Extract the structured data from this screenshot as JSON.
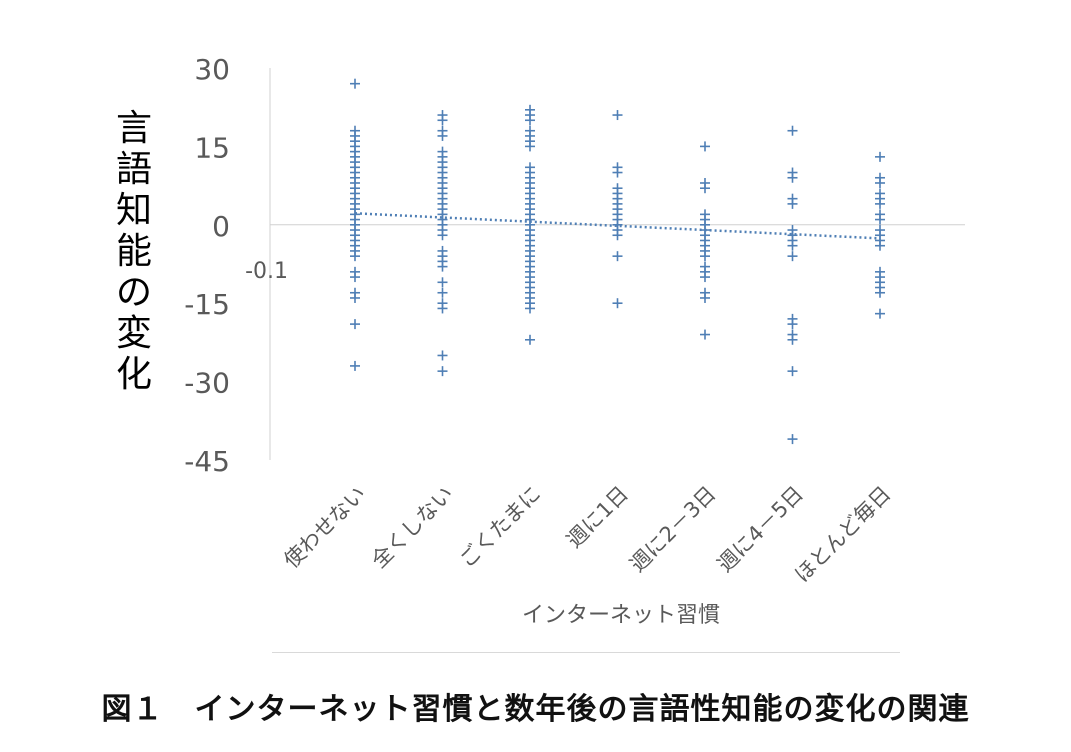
{
  "chart_data": {
    "type": "scatter",
    "title": "",
    "xlabel": "インターネット習慣",
    "ylabel": "言語知能の変化",
    "categories": [
      "使わせない",
      "全くしない",
      "ごくたまに",
      "週に1日",
      "週に2－3日",
      "週に4－5日",
      "ほとんど毎日"
    ],
    "ylim": [
      -45,
      30
    ],
    "yticks": [
      30,
      15,
      0,
      -15,
      -30,
      -45
    ],
    "grid": false,
    "legend": "none",
    "marker_color": "#4f7fb5",
    "trendline": {
      "style": "dotted",
      "start": 2.2,
      "end": -2.6,
      "label": "-0.1"
    },
    "series": [
      {
        "category": "使わせない",
        "y": [
          27,
          18,
          17,
          16,
          15,
          14,
          13,
          12,
          11,
          10,
          9,
          8,
          7,
          6,
          5,
          4,
          3,
          2,
          1,
          0,
          -1,
          -2,
          -3,
          -4,
          -5,
          -6,
          -9,
          -10,
          -13,
          -14,
          -19,
          -27
        ]
      },
      {
        "category": "全くしない",
        "y": [
          21,
          20,
          18,
          17,
          14,
          13,
          12,
          11,
          10,
          9,
          8,
          7,
          6,
          5,
          4,
          3,
          2,
          1,
          0,
          -1,
          -2,
          -5,
          -6,
          -7,
          -8,
          -11,
          -13,
          -15,
          -16,
          -25,
          -28
        ]
      },
      {
        "category": "ごくたまに",
        "y": [
          22,
          21,
          20,
          18,
          17,
          16,
          15,
          11,
          10,
          9,
          8,
          7,
          6,
          5,
          4,
          3,
          2,
          1,
          0,
          -1,
          -2,
          -3,
          -4,
          -5,
          -6,
          -7,
          -8,
          -9,
          -10,
          -11,
          -12,
          -13,
          -14,
          -15,
          -16,
          -22
        ]
      },
      {
        "category": "週に1日",
        "y": [
          21,
          11,
          10,
          7,
          6,
          5,
          4,
          3,
          2,
          1,
          0,
          -1,
          -2,
          -6,
          -15
        ]
      },
      {
        "category": "週に2－3日",
        "y": [
          15,
          8,
          7,
          2,
          1,
          0,
          -1,
          -2,
          -3,
          -4,
          -5,
          -6,
          -8,
          -9,
          -10,
          -13,
          -14,
          -21
        ]
      },
      {
        "category": "週に4－5日",
        "y": [
          18,
          10,
          9,
          5,
          4,
          -1,
          -2,
          -3,
          -4,
          -6,
          -18,
          -19,
          -21,
          -22,
          -28,
          -41
        ]
      },
      {
        "category": "ほとんど毎日",
        "y": [
          13,
          9,
          8,
          6,
          5,
          4,
          2,
          1,
          -1,
          -2,
          -3,
          -4,
          -9,
          -10,
          -11,
          -12,
          -13,
          -17
        ]
      }
    ]
  },
  "caption": "図１　インターネット習慣と数年後の言語性知能の変化の関連"
}
